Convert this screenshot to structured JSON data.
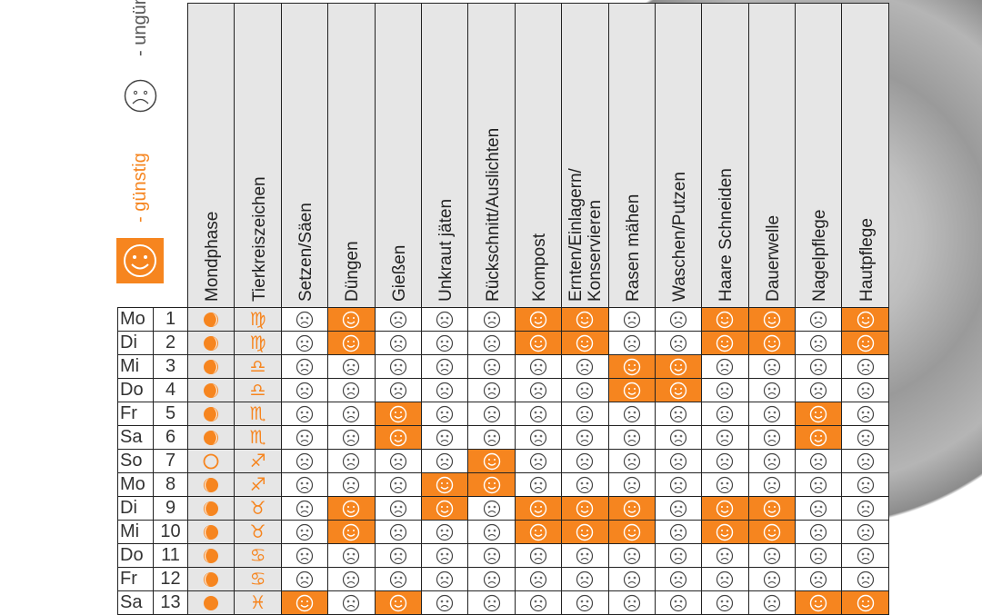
{
  "legend": {
    "good_label": "- günstig",
    "bad_label": "- ungünstig",
    "good_icon": "happy-face-icon",
    "bad_icon": "sad-face-icon"
  },
  "colors": {
    "accent": "#f6851f",
    "grey": "#e6e6e6"
  },
  "headers": [
    "Mondphase",
    "Tierkreiszeichen",
    "Setzen/Säen",
    "Düngen",
    "Gießen",
    "Unkraut jäten",
    "Rückschnitt/Auslichten",
    "Kompost",
    "Ernten/Einlagern/\nKonservieren",
    "Rasen mähen",
    "Waschen/Putzen",
    "Haare Schneiden",
    "Dauerwelle",
    "Nagelpflege",
    "Hautpflege"
  ],
  "rows": [
    {
      "day": "Mo",
      "num": "1",
      "phase": "waning",
      "zodiac": "♍",
      "good": [
        0,
        1,
        0,
        0,
        0,
        1,
        1,
        0,
        0,
        1,
        1,
        0,
        1
      ]
    },
    {
      "day": "Di",
      "num": "2",
      "phase": "waning",
      "zodiac": "♍",
      "good": [
        0,
        1,
        0,
        0,
        0,
        1,
        1,
        0,
        0,
        1,
        1,
        0,
        1
      ]
    },
    {
      "day": "Mi",
      "num": "3",
      "phase": "waning",
      "zodiac": "♎",
      "good": [
        0,
        0,
        0,
        0,
        0,
        0,
        0,
        1,
        1,
        0,
        0,
        0,
        0
      ]
    },
    {
      "day": "Do",
      "num": "4",
      "phase": "waning",
      "zodiac": "♎",
      "good": [
        0,
        0,
        0,
        0,
        0,
        0,
        0,
        1,
        1,
        0,
        0,
        0,
        0
      ]
    },
    {
      "day": "Fr",
      "num": "5",
      "phase": "waning",
      "zodiac": "♏",
      "good": [
        0,
        0,
        1,
        0,
        0,
        0,
        0,
        0,
        0,
        0,
        0,
        1,
        0
      ]
    },
    {
      "day": "Sa",
      "num": "6",
      "phase": "waning",
      "zodiac": "♏",
      "good": [
        0,
        0,
        1,
        0,
        0,
        0,
        0,
        0,
        0,
        0,
        0,
        1,
        0
      ]
    },
    {
      "day": "So",
      "num": "7",
      "phase": "new",
      "zodiac": "♐",
      "good": [
        0,
        0,
        0,
        0,
        1,
        0,
        0,
        0,
        0,
        0,
        0,
        0,
        0
      ]
    },
    {
      "day": "Mo",
      "num": "8",
      "phase": "waxing",
      "zodiac": "♐",
      "good": [
        0,
        0,
        0,
        1,
        1,
        0,
        0,
        0,
        0,
        0,
        0,
        0,
        0
      ]
    },
    {
      "day": "Di",
      "num": "9",
      "phase": "waxing",
      "zodiac": "♉",
      "good": [
        0,
        1,
        0,
        1,
        0,
        1,
        1,
        1,
        0,
        1,
        1,
        0,
        0
      ]
    },
    {
      "day": "Mi",
      "num": "10",
      "phase": "waxing",
      "zodiac": "♉",
      "good": [
        0,
        1,
        0,
        0,
        0,
        1,
        1,
        1,
        0,
        1,
        1,
        0,
        0
      ]
    },
    {
      "day": "Do",
      "num": "11",
      "phase": "waxing",
      "zodiac": "♋",
      "good": [
        0,
        0,
        0,
        0,
        0,
        0,
        0,
        0,
        0,
        0,
        0,
        0,
        0
      ]
    },
    {
      "day": "Fr",
      "num": "12",
      "phase": "waxing",
      "zodiac": "♋",
      "good": [
        0,
        0,
        0,
        0,
        0,
        0,
        0,
        0,
        0,
        0,
        0,
        0,
        0
      ]
    },
    {
      "day": "Sa",
      "num": "13",
      "phase": "full",
      "zodiac": "♓",
      "good": [
        1,
        0,
        1,
        0,
        0,
        0,
        0,
        0,
        0,
        0,
        0,
        1,
        1
      ]
    }
  ]
}
